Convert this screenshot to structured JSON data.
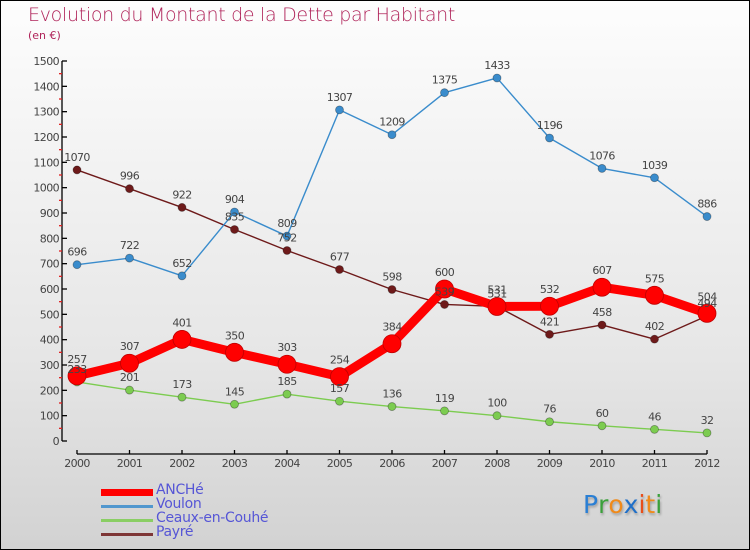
{
  "header": {
    "title": "Evolution du Montant de la Dette par Habitant",
    "subtitle": "(en €)"
  },
  "logo": {
    "text": "Proxiti",
    "letters": [
      {
        "ch": "P",
        "color": "#2a7fd4"
      },
      {
        "ch": "r",
        "color": "#3aa03a"
      },
      {
        "ch": "o",
        "color": "#f08a1a"
      },
      {
        "ch": "x",
        "color": "#1f6fc8"
      },
      {
        "ch": "i",
        "color": "#e84e1a"
      },
      {
        "ch": "t",
        "color": "#f08a1a"
      },
      {
        "ch": "i",
        "color": "#3aa03a"
      }
    ]
  },
  "chart_data": {
    "type": "line",
    "title": "Evolution du Montant de la Dette par Habitant",
    "subtitle": "(en €)",
    "xlabel": "",
    "ylabel": "",
    "x": [
      2000,
      2001,
      2002,
      2003,
      2004,
      2005,
      2006,
      2007,
      2008,
      2009,
      2010,
      2011,
      2012
    ],
    "ylim": [
      0,
      1500
    ],
    "yticks": [
      0,
      100,
      200,
      300,
      400,
      500,
      600,
      700,
      800,
      900,
      1000,
      1100,
      1200,
      1300,
      1400,
      1500
    ],
    "grid": false,
    "legend_position": "bottom-left",
    "series": [
      {
        "name": "Payré",
        "color": "#6e1a1a",
        "style": "thin",
        "values": [
          1070,
          996,
          922,
          835,
          752,
          677,
          598,
          539,
          531,
          421,
          458,
          402,
          494
        ]
      },
      {
        "name": "Voulon",
        "color": "#3a8ccc",
        "style": "thin",
        "values": [
          696,
          722,
          652,
          904,
          809,
          1307,
          1209,
          1375,
          1433,
          1196,
          1076,
          1039,
          886
        ]
      },
      {
        "name": "Ceaux-en-Couhé",
        "color": "#7ccc50",
        "style": "thin",
        "values": [
          233,
          201,
          173,
          145,
          185,
          157,
          136,
          119,
          100,
          76,
          60,
          46,
          32
        ]
      },
      {
        "name": "ANCHé",
        "color": "#ff0000",
        "style": "thick",
        "values": [
          257,
          307,
          401,
          350,
          303,
          254,
          384,
          600,
          531,
          532,
          607,
          575,
          504
        ]
      }
    ],
    "legend_order": [
      "ANCHé",
      "Voulon",
      "Ceaux-en-Couhé",
      "Payré"
    ]
  }
}
